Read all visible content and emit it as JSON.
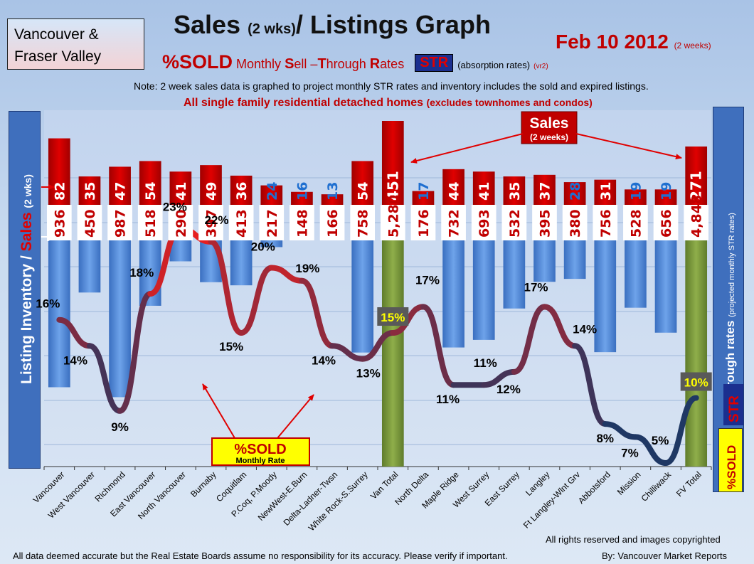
{
  "header": {
    "region": "Vancouver &\nFraser Valley",
    "title_main": "Sales",
    "title_small": "(2 wks)",
    "title_rest": "/ Listings Graph",
    "date": "Feb 10 2012",
    "date_small": "(2 weeks)",
    "sold_label": "%SOLD",
    "monthly_prefix": "Monthly ",
    "s_cap": "S",
    "sell_rest": "ell –",
    "t_cap": "T",
    "through_rest": "hrough ",
    "r_cap": "R",
    "rates_rest": "ates",
    "str_badge": "STR",
    "absorption": "(absorption rates)",
    "version": "(vr2)",
    "note": "Note: 2 week sales data is graphed to project monthly STR rates and inventory includes the sold and expired listings.",
    "homes_main": "All single family residential detached homes",
    "homes_small": "(excludes townhomes and condos)"
  },
  "axes": {
    "left_inventory": "Listing Inventory /",
    "left_sales": "Sales",
    "left_small": "(2 wks)",
    "right_main": "Sell-through rates",
    "right_small": "(projected monthly STR rates)",
    "right_str": "STR",
    "right_sold": "%SOLD"
  },
  "callouts": {
    "sales_label": "Sales",
    "sales_sub": "(2 weeks)",
    "sold_label": "%SOLD",
    "sold_sub": "Monthly Rate"
  },
  "footer": {
    "disclaimer": "All data deemed accurate but the Real Estate Boards assume no responsibility for its accuracy.  Please verify if important.",
    "rights": "All rights reserved and  images copyrighted",
    "byline": "By: Vancouver Market Reports"
  },
  "colors": {
    "sales_bar": "#d40000",
    "inventory_bar": "#4a86d8",
    "total_bar": "#77933c",
    "line_high": "#e61f1f",
    "line_low": "#1f3864"
  },
  "chart_data": {
    "type": "bar",
    "categories": [
      "Vancouver",
      "West Vancouver",
      "Richmond",
      "East Vancouver",
      "North Vancouver",
      "Burnaby",
      "Coquitlam",
      "P.Coq, P.Moody",
      "NewWest-E.Burn",
      "Delta-Ladner-Twsn",
      "White Rock-S.Surrey",
      "Van Total",
      "North Delta",
      "Maple Ridge",
      "West Surrey",
      "East Surrey",
      "Langley",
      "Ft Langley-Wlnt Grv",
      "Abbotsford",
      "Mission",
      "Chilliwack",
      "FV Total"
    ],
    "series": [
      {
        "name": "Sales",
        "values": [
          82,
          35,
          47,
          54,
          41,
          49,
          36,
          24,
          16,
          13,
          54,
          451,
          17,
          44,
          41,
          35,
          37,
          28,
          31,
          19,
          19,
          271
        ]
      },
      {
        "name": "Listing Inventory",
        "values": [
          936,
          450,
          987,
          518,
          290,
          397,
          413,
          217,
          148,
          166,
          758,
          5280,
          176,
          732,
          693,
          532,
          395,
          380,
          756,
          528,
          656,
          4848
        ]
      },
      {
        "name": "%SOLD",
        "values": [
          16,
          14,
          9,
          18,
          23,
          22,
          15,
          20,
          19,
          14,
          13,
          15,
          17,
          11,
          11,
          12,
          17,
          14,
          8,
          7,
          5,
          10
        ]
      }
    ],
    "value_labels": {
      "sales": [
        "82",
        "35",
        "47",
        "54",
        "41",
        "49",
        "36",
        "24",
        "16",
        "13",
        "54",
        "451",
        "17",
        "44",
        "41",
        "35",
        "37",
        "28",
        "31",
        "19",
        "19",
        "271"
      ],
      "inventory": [
        "936",
        "450",
        "987",
        "518",
        "290",
        "397",
        "413",
        "217",
        "148",
        "166",
        "758",
        "5,280",
        "176",
        "732",
        "693",
        "532",
        "395",
        "380",
        "756",
        "528",
        "656",
        "4,848"
      ],
      "percent": [
        "16%",
        "14%",
        "9%",
        "18%",
        "23%",
        "22%",
        "15%",
        "20%",
        "19%",
        "14%",
        "13%",
        "15%",
        "17%",
        "11%",
        "11%",
        "12%",
        "17%",
        "14%",
        "8%",
        "7%",
        "5%",
        "10%"
      ]
    },
    "totals": [
      "Van Total",
      "FV Total"
    ]
  }
}
